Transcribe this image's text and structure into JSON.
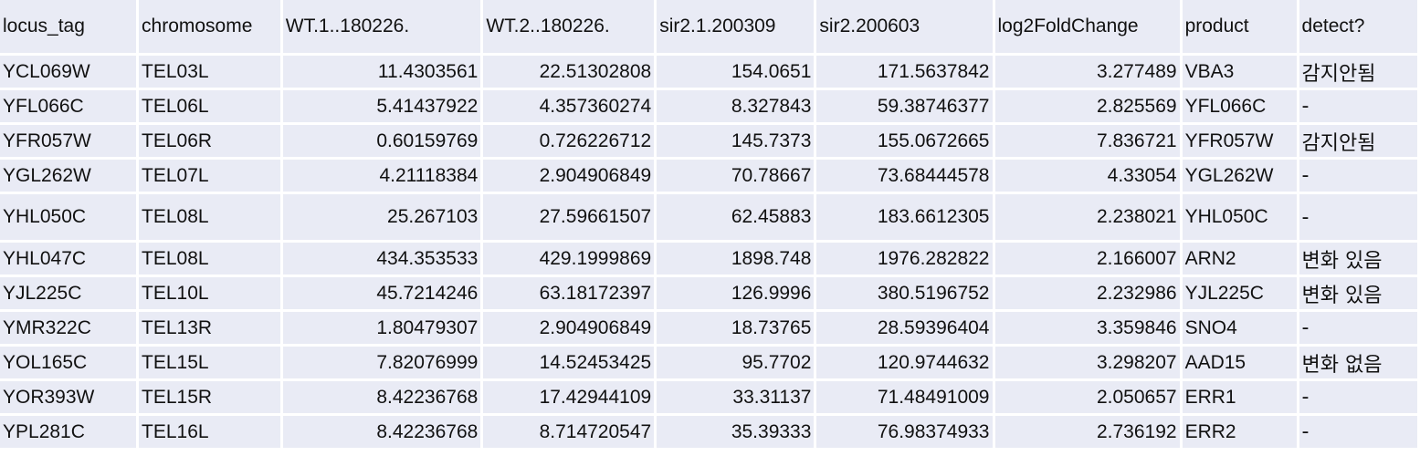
{
  "table": {
    "columns": [
      "locus_tag",
      "chromosome",
      "WT.1..180226.",
      "WT.2..180226.",
      "sir2.1.200309",
      "sir2.200603",
      "log2FoldChange",
      "product",
      "detect?"
    ],
    "rows": [
      [
        "YCL069W",
        "TEL03L",
        "11.4303561",
        "22.51302808",
        "154.0651",
        "171.5637842",
        "3.277489",
        "VBA3",
        "감지안됨"
      ],
      [
        "YFL066C",
        "TEL06L",
        "5.41437922",
        "4.357360274",
        "8.327843",
        "59.38746377",
        "2.825569",
        "YFL066C",
        "-"
      ],
      [
        "YFR057W",
        "TEL06R",
        "0.60159769",
        "0.726226712",
        "145.7373",
        "155.0672665",
        "7.836721",
        "YFR057W",
        "감지안됨"
      ],
      [
        "YGL262W",
        "TEL07L",
        "4.21118384",
        "2.904906849",
        "70.78667",
        "73.68444578",
        "4.33054",
        "YGL262W",
        "-"
      ],
      [
        "YHL050C",
        "TEL08L",
        "25.267103",
        "27.59661507",
        "62.45883",
        "183.6612305",
        "2.238021",
        "YHL050C",
        "-"
      ],
      [
        "YHL047C",
        "TEL08L",
        "434.353533",
        "429.1999869",
        "1898.748",
        "1976.282822",
        "2.166007",
        "ARN2",
        "변화 있음"
      ],
      [
        "YJL225C",
        "TEL10L",
        "45.7214246",
        "63.18172397",
        "126.9996",
        "380.5196752",
        "2.232986",
        "YJL225C",
        "변화 있음"
      ],
      [
        "YMR322C",
        "TEL13R",
        "1.80479307",
        "2.904906849",
        "18.73765",
        "28.59396404",
        "3.359846",
        "SNO4",
        "-"
      ],
      [
        "YOL165C",
        "TEL15L",
        "7.82076999",
        "14.52453425",
        "95.7702",
        "120.9744632",
        "3.298207",
        "AAD15",
        "변화 없음"
      ],
      [
        "YOR393W",
        "TEL15R",
        "8.42236768",
        "17.42944109",
        "33.31137",
        "71.48491009",
        "2.050657",
        "ERR1",
        "-"
      ],
      [
        "YPL281C",
        "TEL16L",
        "8.42236768",
        "8.714720547",
        "35.39333",
        "76.98374933",
        "2.736192",
        "ERR2",
        "-"
      ]
    ]
  },
  "colors": {
    "cell_background": "#e9ebf5",
    "grid_gap": "#ffffff",
    "text": "#111111"
  }
}
